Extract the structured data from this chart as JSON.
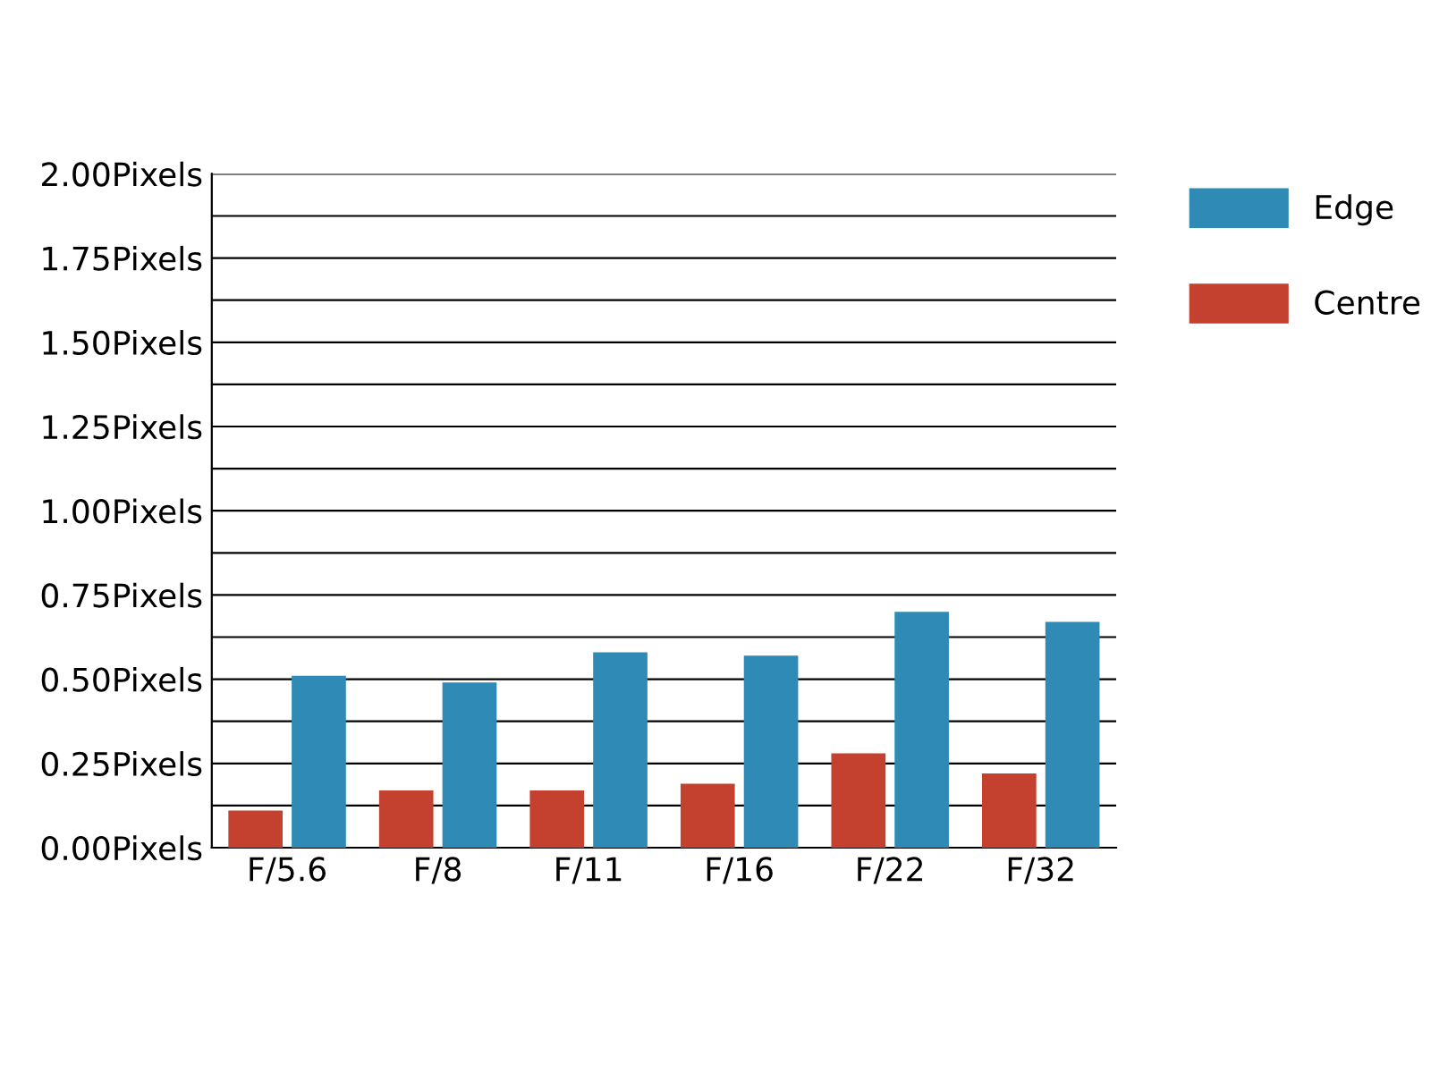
{
  "chart_data": {
    "type": "bar",
    "categories": [
      "F/5.6",
      "F/8",
      "F/11",
      "F/16",
      "F/22",
      "F/32"
    ],
    "series": [
      {
        "name": "Centre",
        "color": "#c4412f",
        "values": [
          0.11,
          0.17,
          0.17,
          0.19,
          0.28,
          0.22
        ]
      },
      {
        "name": "Edge",
        "color": "#2f8ab5",
        "values": [
          0.51,
          0.49,
          0.58,
          0.57,
          0.7,
          0.67
        ]
      }
    ],
    "ylim": [
      0,
      2
    ],
    "yticks": [
      {
        "value": 0,
        "label": "0.00Pixels"
      },
      {
        "value": 0.125,
        "label": null
      },
      {
        "value": 0.25,
        "label": "0.25Pixels"
      },
      {
        "value": 0.375,
        "label": null
      },
      {
        "value": 0.5,
        "label": "0.50Pixels"
      },
      {
        "value": 0.625,
        "label": null
      },
      {
        "value": 0.75,
        "label": "0.75Pixels"
      },
      {
        "value": 0.875,
        "label": null
      },
      {
        "value": 1.0,
        "label": "1.00Pixels"
      },
      {
        "value": 1.125,
        "label": null
      },
      {
        "value": 1.25,
        "label": "1.25Pixels"
      },
      {
        "value": 1.375,
        "label": null
      },
      {
        "value": 1.5,
        "label": "1.50Pixels"
      },
      {
        "value": 1.625,
        "label": null
      },
      {
        "value": 1.75,
        "label": "1.75Pixels"
      },
      {
        "value": 1.875,
        "label": null
      },
      {
        "value": 2.0,
        "label": "2.00Pixels"
      }
    ],
    "grid": "y",
    "legend": "top right"
  }
}
